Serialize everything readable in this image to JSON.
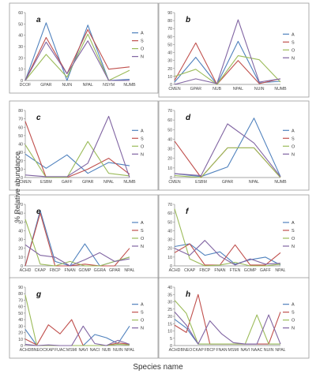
{
  "figure": {
    "ylabel": "% Relative abundance",
    "xlabel": "Species name"
  },
  "colors": {
    "A": "#4f81bd",
    "S": "#c0504d",
    "O": "#9bbb59",
    "N": "#8064a2"
  },
  "chart_data": [
    {
      "type": "line",
      "letter": "a",
      "legend_position": "right",
      "categories": [
        "DCOF",
        "GPAR",
        "NUIN",
        "NPAL",
        "NSYM",
        "NUMB"
      ],
      "ylim": [
        0,
        60
      ],
      "yticks": [
        0,
        10,
        20,
        30,
        40,
        50,
        60
      ],
      "series": [
        {
          "name": "A",
          "values": [
            0,
            51,
            0,
            49,
            0,
            1
          ]
        },
        {
          "name": "S",
          "values": [
            0,
            38,
            6,
            45,
            10,
            12
          ]
        },
        {
          "name": "O",
          "values": [
            0,
            23,
            3,
            41,
            0,
            9
          ]
        },
        {
          "name": "N",
          "values": [
            0,
            34,
            6,
            35,
            0,
            0
          ]
        }
      ]
    },
    {
      "type": "line",
      "letter": "b",
      "legend_position": "right",
      "categories": [
        "CMEN",
        "GPAR",
        "NUB",
        "NPAL",
        "NUIN",
        "NUMB"
      ],
      "ylim": [
        0,
        90
      ],
      "yticks": [
        0,
        10,
        20,
        30,
        40,
        50,
        60,
        70,
        80,
        90
      ],
      "series": [
        {
          "name": "A",
          "values": [
            3,
            34,
            0,
            54,
            2,
            4
          ]
        },
        {
          "name": "S",
          "values": [
            5,
            52,
            0,
            30,
            1,
            7
          ]
        },
        {
          "name": "O",
          "values": [
            10,
            19,
            0,
            36,
            31,
            3
          ]
        },
        {
          "name": "N",
          "values": [
            0,
            7,
            1,
            81,
            3,
            7
          ]
        }
      ]
    },
    {
      "type": "line",
      "letter": "c",
      "legend_position": "right",
      "categories": [
        "CMEN",
        "ESBM",
        "GAFF",
        "GPAR",
        "NPAL",
        "NUMB"
      ],
      "ylim": [
        0,
        80
      ],
      "yticks": [
        0,
        10,
        20,
        30,
        40,
        50,
        60,
        70,
        80
      ],
      "series": [
        {
          "name": "A",
          "values": [
            28,
            11,
            27,
            5,
            18,
            14
          ]
        },
        {
          "name": "S",
          "values": [
            67,
            0,
            0,
            10,
            23,
            4
          ]
        },
        {
          "name": "O",
          "values": [
            39,
            0,
            0,
            43,
            5,
            2
          ]
        },
        {
          "name": "N",
          "values": [
            3,
            1,
            1,
            17,
            73,
            0
          ]
        }
      ]
    },
    {
      "type": "line",
      "letter": "d",
      "legend_position": "right",
      "categories": [
        "CMEN",
        "ESBM",
        "GPAR",
        "NPAL",
        "NUMB"
      ],
      "ylim": [
        0,
        70
      ],
      "yticks": [
        0,
        10,
        20,
        30,
        40,
        50,
        60,
        70
      ],
      "series": [
        {
          "name": "A",
          "values": [
            4,
            1,
            11,
            62,
            1
          ]
        },
        {
          "name": "S",
          "values": [
            38,
            0,
            31,
            31,
            0
          ]
        },
        {
          "name": "O",
          "values": [
            2,
            0,
            31,
            31,
            0
          ]
        },
        {
          "name": "N",
          "values": [
            4,
            2,
            56,
            36,
            1
          ]
        }
      ]
    },
    {
      "type": "line",
      "letter": "e",
      "legend_position": "right",
      "categories": [
        "ACHD",
        "CKAP",
        "FBCP",
        "FNAN",
        "GOMP",
        "GGRA",
        "GPAR",
        "NPAL"
      ],
      "ylim": [
        0,
        70
      ],
      "yticks": [
        0,
        10,
        20,
        30,
        40,
        50,
        60,
        70
      ],
      "series": [
        {
          "name": "A",
          "values": [
            0,
            63,
            5,
            0,
            25,
            0,
            5,
            10
          ]
        },
        {
          "name": "S",
          "values": [
            0,
            60,
            0,
            0,
            2,
            0,
            0,
            20
          ]
        },
        {
          "name": "O",
          "values": [
            53,
            2,
            0,
            5,
            0,
            0,
            5,
            10
          ]
        },
        {
          "name": "N",
          "values": [
            24,
            12,
            10,
            0,
            7,
            15,
            5,
            8
          ]
        }
      ]
    },
    {
      "type": "line",
      "letter": "f",
      "legend_position": "right",
      "categories": [
        "ACHD",
        "CKAP",
        "FBCP",
        "FNAN",
        "FTEN",
        "GOMP",
        "GAFF",
        "NPAL"
      ],
      "ylim": [
        0,
        70
      ],
      "yticks": [
        0,
        10,
        20,
        30,
        40,
        50,
        60,
        70
      ],
      "series": [
        {
          "name": "A",
          "values": [
            22,
            25,
            12,
            16,
            2,
            7,
            10,
            1
          ]
        },
        {
          "name": "S",
          "values": [
            15,
            25,
            1,
            1,
            24,
            1,
            1,
            15
          ]
        },
        {
          "name": "O",
          "values": [
            65,
            8,
            0,
            1,
            4,
            0,
            0,
            2
          ]
        },
        {
          "name": "N",
          "values": [
            20,
            12,
            29,
            11,
            1,
            8,
            2,
            3
          ]
        }
      ]
    },
    {
      "type": "line",
      "letter": "g",
      "legend_position": "right",
      "categories": [
        "ACHD",
        "BNEO",
        "CKAP",
        "FUAC",
        "MSMI",
        "NAVI",
        "NACI",
        "NUB",
        "NUIN",
        "NPAL"
      ],
      "ylim": [
        0,
        90
      ],
      "yticks": [
        0,
        10,
        20,
        30,
        40,
        50,
        60,
        70,
        80,
        90
      ],
      "series": [
        {
          "name": "A",
          "values": [
            25,
            0,
            0,
            0,
            0,
            0,
            17,
            12,
            3,
            30
          ]
        },
        {
          "name": "S",
          "values": [
            10,
            1,
            32,
            18,
            40,
            0,
            0,
            0,
            4,
            2
          ]
        },
        {
          "name": "O",
          "values": [
            78,
            0,
            0,
            0,
            0,
            0,
            0,
            0,
            2,
            1
          ]
        },
        {
          "name": "N",
          "values": [
            2,
            0,
            1,
            0,
            0,
            30,
            3,
            0,
            8,
            2
          ]
        }
      ]
    },
    {
      "type": "line",
      "letter": "h",
      "legend_position": "right",
      "categories": [
        "ACHD",
        "BNEO",
        "CKAP",
        "FBCP",
        "FNAN",
        "MSMI",
        "NAVI",
        "NAAC",
        "NUIN",
        "NPAL"
      ],
      "ylim": [
        0,
        40
      ],
      "yticks": [
        0,
        5,
        10,
        15,
        20,
        25,
        30,
        35,
        40
      ],
      "series": [
        {
          "name": "A",
          "values": [
            18,
            12,
            1,
            1,
            1,
            1,
            1,
            1,
            1,
            1
          ]
        },
        {
          "name": "S",
          "values": [
            14,
            9,
            35,
            1,
            1,
            1,
            1,
            1,
            1,
            23
          ]
        },
        {
          "name": "O",
          "values": [
            31,
            22,
            1,
            1,
            1,
            1,
            1,
            21,
            1,
            1
          ]
        },
        {
          "name": "N",
          "values": [
            23,
            14,
            1,
            17,
            8,
            2,
            1,
            1,
            21,
            1
          ]
        }
      ]
    }
  ]
}
